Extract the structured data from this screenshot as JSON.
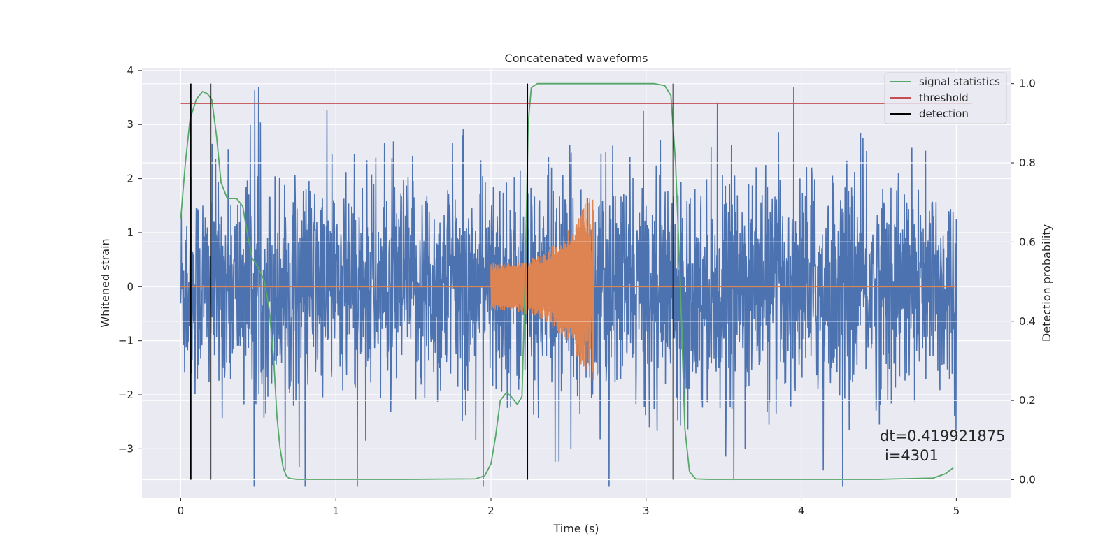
{
  "chart_data": {
    "type": "line",
    "title": "Concatenated waveforms",
    "xlabel": "Time (s)",
    "ylabel": "Whitened strain",
    "ylabel_right": "Detection probability",
    "xlim": [
      -0.25,
      5.35
    ],
    "ylim": [
      -3.9,
      4.05
    ],
    "ylim_right": [
      -0.045,
      1.04
    ],
    "x_ticks": [
      0,
      1,
      2,
      3,
      4,
      5
    ],
    "y_ticks": [
      -3,
      -2,
      -1,
      0,
      1,
      2,
      3,
      4
    ],
    "y_ticks_right": [
      0.0,
      0.2,
      0.4,
      0.6,
      0.8,
      1.0
    ],
    "x_tick_labels": [
      "0",
      "1",
      "2",
      "3",
      "4",
      "5"
    ],
    "y_tick_labels": [
      "−3",
      "−2",
      "−1",
      "0",
      "1",
      "2",
      "3",
      "4"
    ],
    "y_tick_labels_right": [
      "0.0",
      "0.2",
      "0.4",
      "0.6",
      "0.8",
      "1.0"
    ],
    "grid": true,
    "legend_position": "top-right",
    "series": [
      {
        "name": "",
        "kind": "noise",
        "axis": "left",
        "color": "#4c72b0",
        "x_range": [
          0,
          5
        ],
        "typical_amplitude": 1.0,
        "peak_amplitude": 3.7
      },
      {
        "name": "",
        "kind": "chirp",
        "axis": "left",
        "color": "#dd8452",
        "baseline": 0,
        "x_range": [
          0,
          5
        ],
        "chirp_start": 2.0,
        "chirp_end": 2.66,
        "amplitude_start": 0.45,
        "amplitude_end": 1.9
      },
      {
        "name": "signal statistics",
        "kind": "line",
        "axis": "right",
        "color": "#55a868",
        "x": [
          0.0,
          0.03,
          0.06,
          0.1,
          0.14,
          0.17,
          0.2,
          0.23,
          0.26,
          0.3,
          0.33,
          0.36,
          0.4,
          0.43,
          0.46,
          0.5,
          0.54,
          0.57,
          0.6,
          0.62,
          0.64,
          0.66,
          0.68,
          0.7,
          0.75,
          0.85,
          1.0,
          1.5,
          1.9,
          1.96,
          2.0,
          2.03,
          2.06,
          2.1,
          2.13,
          2.17,
          2.2,
          2.22,
          2.24,
          2.26,
          2.3,
          2.5,
          2.8,
          3.05,
          3.12,
          3.16,
          3.19,
          3.22,
          3.25,
          3.28,
          3.32,
          3.4,
          3.8,
          4.5,
          4.85,
          4.93,
          4.98
        ],
        "y": [
          0.66,
          0.8,
          0.91,
          0.96,
          0.98,
          0.975,
          0.96,
          0.87,
          0.75,
          0.71,
          0.71,
          0.71,
          0.69,
          0.62,
          0.56,
          0.535,
          0.5,
          0.43,
          0.3,
          0.16,
          0.08,
          0.03,
          0.01,
          0.003,
          0.001,
          0.001,
          0.001,
          0.001,
          0.002,
          0.01,
          0.04,
          0.11,
          0.2,
          0.22,
          0.21,
          0.19,
          0.21,
          0.5,
          0.9,
          0.99,
          1.0,
          1.0,
          1.0,
          1.0,
          0.995,
          0.97,
          0.8,
          0.5,
          0.13,
          0.02,
          0.002,
          0.001,
          0.001,
          0.001,
          0.004,
          0.015,
          0.03
        ]
      },
      {
        "name": "threshold",
        "kind": "hline",
        "axis": "right",
        "color": "#c44e52",
        "y": 0.95,
        "x_range": [
          0,
          5.1
        ]
      },
      {
        "name": "detection",
        "kind": "vlines",
        "axis": "right",
        "color": "#000000",
        "x": [
          0.065,
          0.193,
          2.235,
          3.175
        ],
        "y_range": [
          0.0,
          1.0
        ]
      }
    ],
    "annotation": {
      "line1": "dt=0.419921875",
      "line2": "i=4301"
    }
  }
}
